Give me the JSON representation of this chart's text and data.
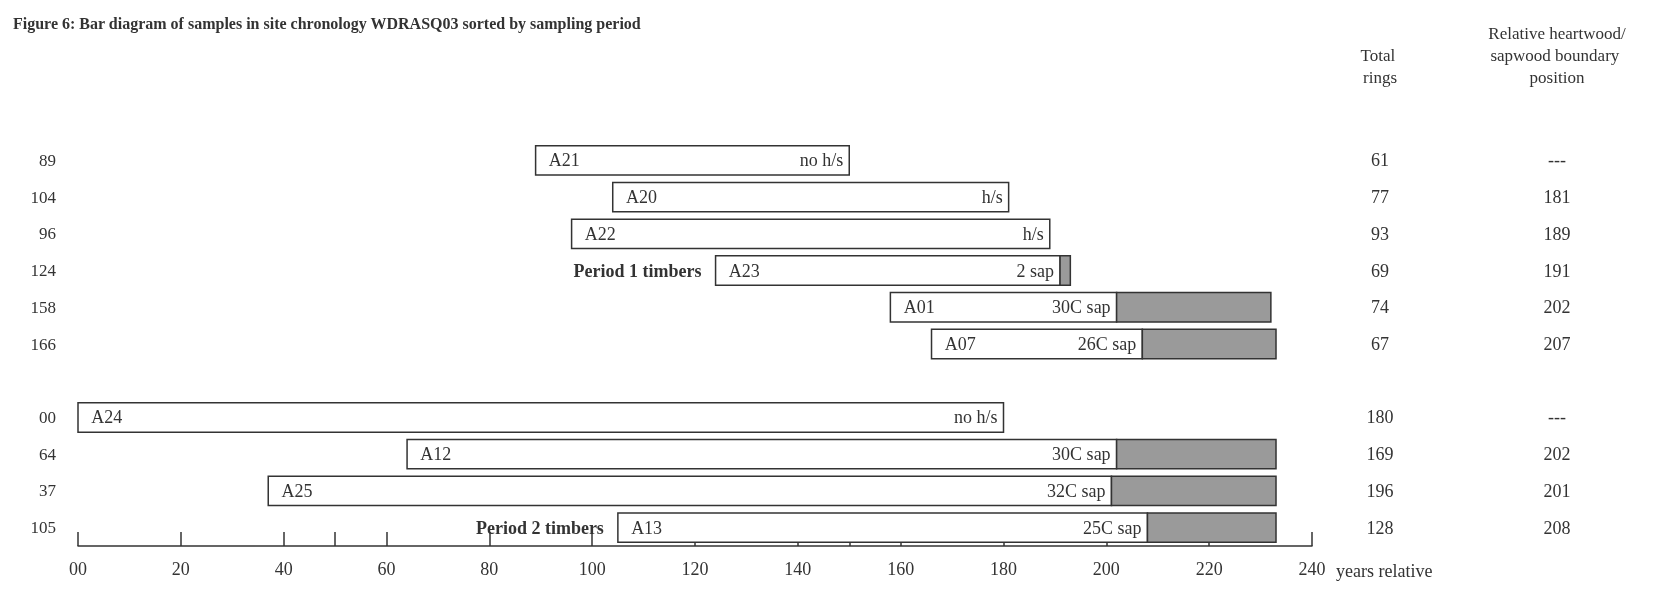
{
  "chart_data": {
    "type": "bar",
    "orientation": "horizontal",
    "title": "Figure 6: Bar diagram of samples in site chronology WDRASQ03 sorted by sampling period",
    "xlabel": "years relative",
    "categories": [
      "89",
      "104",
      "96",
      "124",
      "158",
      "166",
      null,
      "00",
      "64",
      "37",
      "105"
    ],
    "series": [
      {
        "color": "#ffffff",
        "base": [
          89,
          104,
          96,
          124,
          158,
          166,
          null,
          0,
          64,
          37,
          105
        ],
        "values": [
          61,
          77,
          93,
          67,
          44,
          41,
          null,
          180,
          138,
          164,
          103
        ],
        "value_labels": [
          "A21",
          "A20",
          "A22",
          "A23",
          "A01",
          "A07",
          null,
          "A24",
          "A12",
          "A25",
          "A13"
        ]
      },
      {
        "color": "#9a9a9a",
        "base": [
          null,
          null,
          null,
          191,
          202,
          207,
          null,
          null,
          202,
          201,
          208
        ],
        "values": [
          null,
          null,
          null,
          2,
          30,
          26,
          null,
          null,
          31,
          32,
          25
        ]
      }
    ],
    "xlim": [
      0,
      240
    ],
    "xticks": [
      {
        "value": 0,
        "label": "00"
      },
      20,
      40,
      {
        "value": 50,
        "label": null
      },
      60,
      80,
      100,
      120,
      140,
      {
        "value": 150,
        "label": null
      },
      160,
      180,
      200,
      220,
      240
    ],
    "grid": false,
    "annotations": [
      "Total rings",
      "Relative heartwood/sapwood boundary position",
      "Period 1 timbers",
      "Period 2 timbers",
      "61",
      "---",
      "77",
      "181",
      "93",
      "189",
      "69",
      "191",
      "74",
      "202",
      "67",
      "207",
      "180",
      "---",
      "169",
      "202",
      "196",
      "201",
      "128",
      "208",
      {
        "text": "no h/s",
        "x": 150,
        "y": "89"
      },
      {
        "text": "h/s",
        "x": 181,
        "y": "104"
      },
      {
        "text": "h/s",
        "x": 189,
        "y": "96"
      },
      {
        "text": "2 sap",
        "x": 191,
        "y": "124"
      },
      {
        "text": "30C sap",
        "x": 202,
        "y": "158"
      },
      {
        "text": "26C sap",
        "x": 207,
        "y": "166"
      },
      {
        "text": "no h/s",
        "x": 180,
        "y": "00"
      },
      {
        "text": "30C sap",
        "x": 202,
        "y": "64"
      },
      {
        "text": "32C sap",
        "x": 201,
        "y": "37"
      },
      {
        "text": "25C sap",
        "x": 208,
        "y": "105"
      }
    ]
  }
}
